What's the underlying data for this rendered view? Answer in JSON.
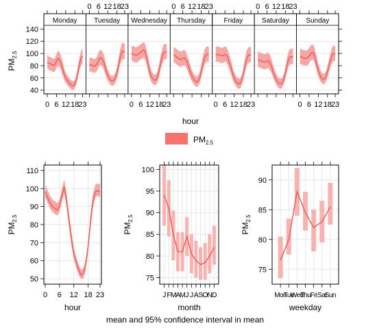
{
  "chart_data": [
    {
      "type": "line",
      "panel": "hour-by-weekday",
      "strip_labels": [
        "Monday",
        "Tuesday",
        "Wednesday",
        "Thursday",
        "Friday",
        "Saturday",
        "Sunday"
      ],
      "xlabel": "hour",
      "ylabel": "PM2.5",
      "ylim": [
        34,
        146
      ],
      "yticks": [
        40,
        60,
        80,
        100,
        120,
        140
      ],
      "xticks": [
        0,
        6,
        12,
        18,
        23
      ],
      "legend": {
        "label": "PM2.5",
        "color": "#f4736f",
        "placement": "bottom-center"
      },
      "series": [
        {
          "weekday": "Monday",
          "x": [
            0,
            1,
            2,
            3,
            4,
            5,
            6,
            7,
            8,
            9,
            10,
            11,
            12,
            13,
            14,
            15,
            16,
            17,
            18,
            19,
            20,
            21,
            22,
            23
          ],
          "mean": [
            86,
            84,
            83,
            82,
            80,
            82,
            88,
            92,
            90,
            84,
            75,
            66,
            60,
            56,
            53,
            50,
            48,
            47,
            50,
            58,
            70,
            82,
            92,
            96
          ],
          "lower": [
            76,
            73,
            72,
            71,
            69,
            71,
            76,
            80,
            78,
            72,
            64,
            57,
            52,
            48,
            45,
            43,
            41,
            40,
            43,
            50,
            60,
            72,
            80,
            84
          ],
          "upper": [
            98,
            95,
            94,
            93,
            91,
            93,
            100,
            104,
            102,
            96,
            87,
            76,
            69,
            64,
            61,
            58,
            55,
            54,
            57,
            66,
            80,
            94,
            104,
            108
          ]
        },
        {
          "weekday": "Tuesday",
          "x": [
            0,
            1,
            2,
            3,
            4,
            5,
            6,
            7,
            8,
            9,
            10,
            11,
            12,
            13,
            14,
            15,
            16,
            17,
            18,
            19,
            20,
            21,
            22,
            23
          ],
          "mean": [
            80,
            82,
            80,
            79,
            80,
            83,
            89,
            93,
            92,
            88,
            80,
            71,
            64,
            59,
            56,
            55,
            56,
            60,
            68,
            80,
            93,
            101,
            104,
            102
          ],
          "lower": [
            69,
            71,
            69,
            68,
            69,
            72,
            77,
            81,
            80,
            76,
            69,
            61,
            55,
            51,
            48,
            47,
            48,
            52,
            59,
            69,
            81,
            88,
            91,
            90
          ],
          "upper": [
            92,
            94,
            92,
            91,
            92,
            95,
            102,
            106,
            105,
            101,
            92,
            82,
            74,
            68,
            64,
            63,
            64,
            69,
            78,
            92,
            106,
            115,
            118,
            116
          ]
        },
        {
          "weekday": "Wednesday",
          "x": [
            0,
            1,
            2,
            3,
            4,
            5,
            6,
            7,
            8,
            9,
            10,
            11,
            12,
            13,
            14,
            15,
            16,
            17,
            18,
            19,
            20,
            21,
            22,
            23
          ],
          "mean": [
            100,
            99,
            98,
            97,
            98,
            100,
            102,
            104,
            106,
            102,
            92,
            80,
            69,
            62,
            58,
            56,
            57,
            62,
            72,
            84,
            95,
            101,
            103,
            102
          ],
          "lower": [
            88,
            87,
            86,
            85,
            86,
            88,
            90,
            92,
            93,
            89,
            80,
            69,
            59,
            53,
            50,
            48,
            49,
            53,
            62,
            73,
            83,
            89,
            91,
            90
          ],
          "upper": [
            113,
            112,
            111,
            110,
            111,
            113,
            115,
            117,
            119,
            115,
            105,
            92,
            80,
            72,
            67,
            65,
            66,
            72,
            83,
            96,
            108,
            114,
            116,
            115
          ]
        },
        {
          "weekday": "Thursday",
          "x": [
            0,
            1,
            2,
            3,
            4,
            5,
            6,
            7,
            8,
            9,
            10,
            11,
            12,
            13,
            14,
            15,
            16,
            17,
            18,
            19,
            20,
            21,
            22,
            23
          ],
          "mean": [
            98,
            96,
            94,
            92,
            91,
            90,
            92,
            93,
            90,
            84,
            77,
            69,
            63,
            58,
            55,
            53,
            55,
            60,
            70,
            82,
            92,
            97,
            99,
            98
          ],
          "lower": [
            86,
            84,
            82,
            80,
            79,
            78,
            80,
            81,
            78,
            73,
            66,
            59,
            54,
            50,
            47,
            45,
            47,
            51,
            60,
            71,
            80,
            85,
            87,
            86
          ],
          "upper": [
            111,
            109,
            107,
            105,
            104,
            103,
            105,
            106,
            103,
            96,
            89,
            80,
            73,
            67,
            64,
            62,
            64,
            70,
            81,
            94,
            105,
            110,
            112,
            111
          ]
        },
        {
          "weekday": "Friday",
          "x": [
            0,
            1,
            2,
            3,
            4,
            5,
            6,
            7,
            8,
            9,
            10,
            11,
            12,
            13,
            14,
            15,
            16,
            17,
            18,
            19,
            20,
            21,
            22,
            23
          ],
          "mean": [
            97,
            99,
            98,
            97,
            96,
            97,
            99,
            97,
            92,
            85,
            76,
            67,
            60,
            55,
            52,
            50,
            51,
            56,
            66,
            79,
            90,
            96,
            98,
            97
          ],
          "lower": [
            85,
            87,
            86,
            85,
            84,
            85,
            87,
            85,
            80,
            74,
            65,
            57,
            51,
            47,
            44,
            42,
            43,
            48,
            57,
            68,
            78,
            84,
            86,
            85
          ],
          "upper": [
            110,
            112,
            111,
            110,
            109,
            110,
            112,
            110,
            105,
            97,
            88,
            78,
            70,
            64,
            61,
            59,
            60,
            65,
            76,
            91,
            103,
            109,
            111,
            110
          ]
        },
        {
          "weekday": "Saturday",
          "x": [
            0,
            1,
            2,
            3,
            4,
            5,
            6,
            7,
            8,
            9,
            10,
            11,
            12,
            13,
            14,
            15,
            16,
            17,
            18,
            19,
            20,
            21,
            22,
            23
          ],
          "mean": [
            90,
            89,
            88,
            87,
            86,
            86,
            88,
            88,
            84,
            78,
            70,
            63,
            57,
            53,
            51,
            50,
            52,
            58,
            68,
            80,
            90,
            94,
            95,
            94
          ],
          "lower": [
            78,
            77,
            76,
            75,
            74,
            74,
            76,
            76,
            72,
            67,
            60,
            54,
            49,
            45,
            43,
            42,
            44,
            50,
            59,
            69,
            78,
            82,
            83,
            82
          ],
          "upper": [
            103,
            102,
            101,
            100,
            99,
            99,
            101,
            101,
            97,
            90,
            81,
            73,
            66,
            62,
            60,
            59,
            61,
            67,
            78,
            92,
            103,
            107,
            108,
            107
          ]
        },
        {
          "weekday": "Sunday",
          "x": [
            0,
            1,
            2,
            3,
            4,
            5,
            6,
            7,
            8,
            9,
            10,
            11,
            12,
            13,
            14,
            15,
            16,
            17,
            18,
            19,
            20,
            21,
            22,
            23
          ],
          "mean": [
            95,
            94,
            93,
            92,
            92,
            93,
            96,
            100,
            102,
            100,
            92,
            82,
            72,
            65,
            60,
            58,
            58,
            62,
            70,
            80,
            90,
            97,
            100,
            99
          ],
          "lower": [
            83,
            82,
            81,
            80,
            80,
            81,
            84,
            88,
            90,
            88,
            80,
            71,
            62,
            56,
            52,
            50,
            50,
            54,
            61,
            70,
            79,
            85,
            88,
            87
          ],
          "upper": [
            108,
            107,
            106,
            105,
            105,
            106,
            109,
            113,
            115,
            113,
            105,
            94,
            83,
            75,
            69,
            67,
            67,
            71,
            80,
            91,
            102,
            110,
            113,
            112
          ]
        }
      ]
    },
    {
      "type": "line",
      "panel": "hour",
      "xlabel": "hour",
      "ylabel": "PM2.5",
      "ylim": [
        47,
        113
      ],
      "yticks": [
        50,
        60,
        70,
        80,
        90,
        100,
        110
      ],
      "xticks": [
        0,
        6,
        12,
        18,
        23
      ],
      "x": [
        0,
        1,
        2,
        3,
        4,
        5,
        6,
        7,
        8,
        9,
        10,
        11,
        12,
        13,
        14,
        15,
        16,
        17,
        18,
        19,
        20,
        21,
        22,
        23
      ],
      "mean": [
        98,
        95,
        92,
        90,
        89,
        88,
        90,
        96,
        101,
        93,
        82,
        72,
        64,
        59,
        55,
        52,
        53,
        58,
        68,
        82,
        93,
        98,
        99,
        98
      ],
      "lower": [
        95,
        92,
        89,
        87,
        86,
        85,
        87,
        93,
        97,
        89,
        78,
        68,
        61,
        56,
        52,
        50,
        50,
        55,
        65,
        78,
        89,
        95,
        96,
        95
      ],
      "upper": [
        102,
        99,
        96,
        94,
        93,
        92,
        94,
        100,
        105,
        97,
        86,
        76,
        67,
        62,
        58,
        55,
        56,
        61,
        71,
        86,
        97,
        102,
        103,
        102
      ]
    },
    {
      "type": "line",
      "panel": "month",
      "xlabel": "month",
      "ylabel": "PM2.5",
      "ylim": [
        73.5,
        101
      ],
      "yticks": [
        75,
        80,
        85,
        90,
        95,
        100
      ],
      "categories": [
        "J",
        "F",
        "M",
        "A",
        "M",
        "J",
        "J",
        "A",
        "S",
        "O",
        "N",
        "D"
      ],
      "mean": [
        94,
        91,
        85,
        81,
        81,
        84.5,
        80.5,
        79,
        78,
        78.5,
        80,
        82
      ],
      "lower": [
        87,
        84.5,
        79,
        76.5,
        76.5,
        80,
        76,
        75,
        74.5,
        74.5,
        76,
        78
      ],
      "upper": [
        101,
        97.5,
        90.5,
        85.5,
        85.5,
        89,
        85,
        83.5,
        82,
        83,
        85,
        87
      ]
    },
    {
      "type": "line",
      "panel": "weekday",
      "xlabel": "weekday",
      "ylabel": "PM2.5",
      "ylim": [
        72.5,
        92.5
      ],
      "yticks": [
        75,
        80,
        85,
        90
      ],
      "categories": [
        "Mon",
        "Tue",
        "Wed",
        "Thu",
        "Fri",
        "Sat",
        "Sun"
      ],
      "mean": [
        76.5,
        80,
        88,
        84.5,
        82,
        83,
        85.5
      ],
      "lower": [
        73.5,
        77.5,
        84,
        81.5,
        78,
        79.5,
        82.5
      ],
      "upper": [
        80.5,
        83.5,
        92,
        88,
        85,
        86.5,
        89.5
      ]
    }
  ],
  "footer": {
    "caption": "mean and 95% confidence interval in mean"
  },
  "colors": {
    "line": "#e8645f",
    "band": "#f7a7a5",
    "bar": "#f8b2b0",
    "frame": "#000000",
    "grid": "#e6e6e6",
    "strip_bg": "#ffffff"
  }
}
